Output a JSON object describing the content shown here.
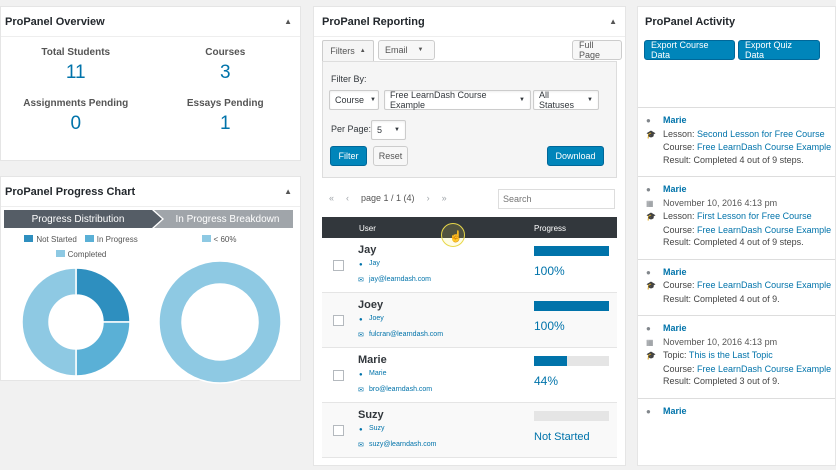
{
  "overview": {
    "title": "ProPanel Overview",
    "stats": [
      {
        "label": "Total Students",
        "value": "11"
      },
      {
        "label": "Courses",
        "value": "3"
      },
      {
        "label": "Assignments Pending",
        "value": "0"
      },
      {
        "label": "Essays Pending",
        "value": "1"
      }
    ]
  },
  "progress_chart": {
    "title": "ProPanel Progress Chart",
    "tabs": [
      "Progress Distribution",
      "In Progress Breakdown"
    ],
    "legend_left": [
      "Not Started",
      "In Progress",
      "Completed"
    ],
    "legend_right": [
      "< 60%"
    ],
    "colors": {
      "not_started": "#2e8fbf",
      "in_progress": "#5ab0d6",
      "completed": "#8ec9e3",
      "lt60": "#8ec9e3"
    },
    "chart_data": [
      {
        "type": "pie",
        "title": "",
        "slices": [
          {
            "name": "Not Started",
            "value": 1
          },
          {
            "name": "In Progress",
            "value": 1
          },
          {
            "name": "Completed",
            "value": 2
          }
        ]
      },
      {
        "type": "pie",
        "title": "",
        "slices": [
          {
            "name": "< 60%",
            "value": 1
          }
        ]
      }
    ]
  },
  "reporting": {
    "title": "ProPanel Reporting",
    "tab_filters": "Filters",
    "tab_email": "Email",
    "full_page": "Full Page",
    "filter_by_label": "Filter By:",
    "filter_type": "Course",
    "filter_course": "Free LearnDash Course Example",
    "filter_status": "All Statuses",
    "per_page_label": "Per Page:",
    "per_page_value": "5",
    "filter_btn": "Filter",
    "reset_btn": "Reset",
    "download_btn": "Download",
    "pagination": {
      "first": "«",
      "prev": "‹",
      "text": "page 1 / 1 (4)",
      "next": "›",
      "last": "»"
    },
    "search_placeholder": "Search",
    "columns": [
      "User",
      "Progress"
    ],
    "rows": [
      {
        "name": "Jay",
        "username": "Jay",
        "email": "jay@learndash.com",
        "progress_text": "100%",
        "progress": 100
      },
      {
        "name": "Joey",
        "username": "Joey",
        "email": "fulcran@learndash.com",
        "progress_text": "100%",
        "progress": 100
      },
      {
        "name": "Marie",
        "username": "Marie",
        "email": "bro@learndash.com",
        "progress_text": "44%",
        "progress": 44
      },
      {
        "name": "Suzy",
        "username": "Suzy",
        "email": "suzy@learndash.com",
        "progress_text": "Not Started",
        "progress": 0
      }
    ]
  },
  "activity": {
    "title": "ProPanel Activity",
    "export_course": "Export Course Data",
    "export_quiz": "Export Quiz Data",
    "items": [
      {
        "user": "Marie",
        "lines": [
          {
            "icon": "mortarboard-icon",
            "label": "Lesson:",
            "link": "Second Lesson for Free Course"
          },
          {
            "icon": "",
            "label": "Course:",
            "link": "Free LearnDash Course Example"
          },
          {
            "icon": "",
            "label": "Result:",
            "text": "Completed 4 out of 9 steps."
          }
        ]
      },
      {
        "user": "Marie",
        "date": "November 10, 2016 4:13 pm",
        "lines": [
          {
            "icon": "mortarboard-icon",
            "label": "Lesson:",
            "link": "First Lesson for Free Course"
          },
          {
            "icon": "",
            "label": "Course:",
            "link": "Free LearnDash Course Example"
          },
          {
            "icon": "",
            "label": "Result:",
            "text": "Completed 4 out of 9 steps."
          }
        ]
      },
      {
        "user": "Marie",
        "lines": [
          {
            "icon": "mortarboard-icon",
            "label": "Course:",
            "link": "Free LearnDash Course Example"
          },
          {
            "icon": "",
            "label": "Result:",
            "text": "Completed 4 out of 9."
          }
        ]
      },
      {
        "user": "Marie",
        "date": "November 10, 2016 4:13 pm",
        "lines": [
          {
            "icon": "mortarboard-icon",
            "label": "Topic:",
            "link": "This is the Last Topic"
          },
          {
            "icon": "",
            "label": "Course:",
            "link": "Free LearnDash Course Example"
          },
          {
            "icon": "",
            "label": "Result:",
            "text": "Completed 3 out of 9."
          }
        ]
      },
      {
        "user": "Marie",
        "lines": []
      }
    ]
  }
}
